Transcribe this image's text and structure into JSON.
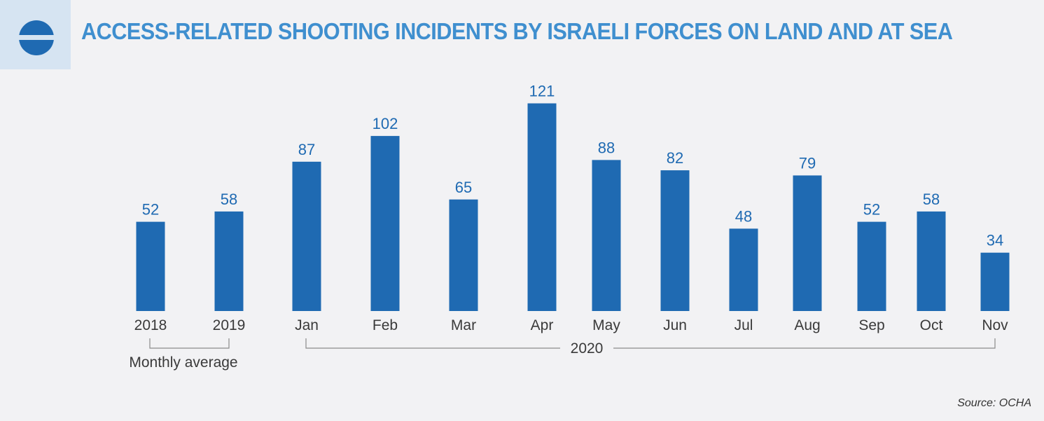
{
  "title": "ACCESS-RELATED SHOOTING INCIDENTS BY ISRAELI FORCES ON LAND AND AT SEA",
  "source": "Source: OCHA",
  "colors": {
    "bar": "#1f6ab2",
    "title": "#3f8fcf",
    "logo_bg": "#d6e4f2",
    "background": "#f2f2f4"
  },
  "icons": {
    "logo": "un-ocha-logo-icon"
  },
  "groups": [
    {
      "label": "Monthly average"
    },
    {
      "label": "2020"
    }
  ],
  "chart_data": {
    "type": "bar",
    "title": "ACCESS-RELATED SHOOTING INCIDENTS BY ISRAELI FORCES ON LAND AND AT SEA",
    "categories": [
      "2018",
      "2019",
      "Jan",
      "Feb",
      "Mar",
      "Apr",
      "May",
      "Jun",
      "Jul",
      "Aug",
      "Sep",
      "Oct",
      "Nov"
    ],
    "values": [
      52,
      58,
      87,
      102,
      65,
      121,
      88,
      82,
      48,
      79,
      52,
      58,
      34
    ],
    "xlabel": "",
    "ylabel": "",
    "grid": false,
    "legend": "none",
    "data_labels": true,
    "category_groups": [
      {
        "label": "Monthly average",
        "categories": [
          "2018",
          "2019"
        ]
      },
      {
        "label": "2020",
        "categories": [
          "Jan",
          "Feb",
          "Mar",
          "Apr",
          "May",
          "Jun",
          "Jul",
          "Aug",
          "Sep",
          "Oct",
          "Nov"
        ]
      }
    ]
  }
}
